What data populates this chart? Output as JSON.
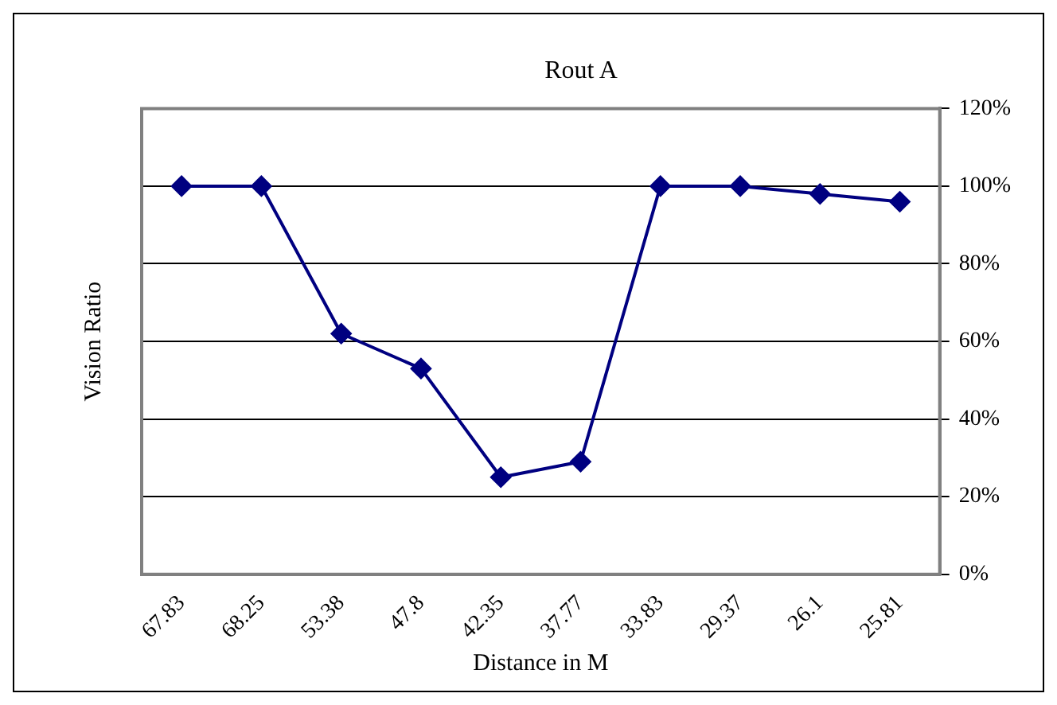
{
  "chart_data": {
    "type": "line",
    "title": "Rout A",
    "xlabel": "Distance in M",
    "ylabel": "Vision Ratio",
    "categories": [
      "67.83",
      "68.25",
      "53.38",
      "47.8",
      "42.35",
      "37.77",
      "33.83",
      "29.37",
      "26.1",
      "25.81"
    ],
    "series": [
      {
        "color": "#000080",
        "values": [
          100,
          100,
          62,
          53,
          25,
          29,
          100,
          100,
          98,
          96
        ]
      }
    ],
    "ylim": [
      0,
      120
    ],
    "yticks": [
      {
        "value": 0,
        "label": "0%"
      },
      {
        "value": 20,
        "label": "20%"
      },
      {
        "value": 40,
        "label": "40%"
      },
      {
        "value": 60,
        "label": "60%"
      },
      {
        "value": 80,
        "label": "80%"
      },
      {
        "value": 100,
        "label": "100%"
      },
      {
        "value": 120,
        "label": "120%"
      }
    ],
    "grid": "y",
    "legend": false,
    "marker": "diamond",
    "line_style": "solid"
  }
}
